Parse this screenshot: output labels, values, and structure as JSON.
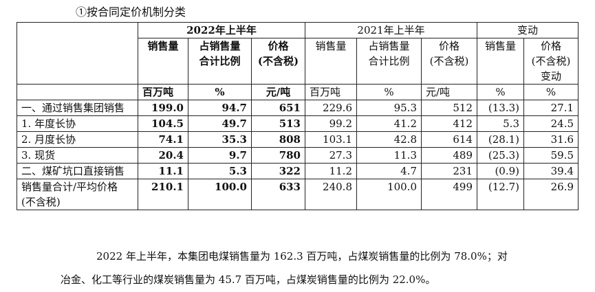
{
  "heading": "①按合同定价机制分类",
  "table": {
    "group_headers": [
      "2022年上半年",
      "2021年上半年",
      "变动"
    ],
    "col_headers_2022": [
      [
        "销售量"
      ],
      [
        "占销售量",
        "合计比例"
      ],
      [
        "价格",
        "(不含税)"
      ]
    ],
    "col_headers_2021": [
      [
        "销售量"
      ],
      [
        "占销售量",
        "合计比例"
      ],
      [
        "价格",
        "(不含税)"
      ]
    ],
    "col_headers_change": [
      [
        "销售量"
      ],
      [
        "价格",
        "(不含税)",
        "变动"
      ]
    ],
    "units": [
      "百万吨",
      "%",
      "元/吨",
      "百万吨",
      "%",
      "元/吨",
      "%",
      "%"
    ],
    "rows": [
      {
        "label": [
          "一、通过销售集团销售"
        ],
        "values": [
          "199.0",
          "94.7",
          "651",
          "229.6",
          "95.3",
          "512",
          "(13.3)",
          "27.1"
        ]
      },
      {
        "label": [
          "1. 年度长协"
        ],
        "values": [
          "104.5",
          "49.7",
          "513",
          "99.2",
          "41.2",
          "412",
          "5.3",
          "24.5"
        ]
      },
      {
        "label": [
          "2. 月度长协"
        ],
        "values": [
          "74.1",
          "35.3",
          "808",
          "103.1",
          "42.8",
          "614",
          "(28.1)",
          "31.6"
        ]
      },
      {
        "label": [
          "3. 现货"
        ],
        "values": [
          "20.4",
          "9.7",
          "780",
          "27.3",
          "11.3",
          "489",
          "(25.3)",
          "59.5"
        ]
      },
      {
        "label": [
          "二、煤矿坑口直接销售"
        ],
        "values": [
          "11.1",
          "5.3",
          "322",
          "11.2",
          "4.7",
          "231",
          "(0.9)",
          "39.4"
        ]
      },
      {
        "label": [
          "销售量合计/平均价格",
          "(不含税)"
        ],
        "values": [
          "210.1",
          "100.0",
          "633",
          "240.8",
          "100.0",
          "499",
          "(12.7)",
          "26.9"
        ]
      }
    ]
  },
  "paragraph": {
    "line1": "2022 年上半年，本集团电煤销售量为 162.3 百万吨，占煤炭销售量的比例为 78.0%；对",
    "line2": "冶金、化工等行业的煤炭销售量为 45.7 百万吨，占煤炭销售量的比例为 22.0%。"
  }
}
